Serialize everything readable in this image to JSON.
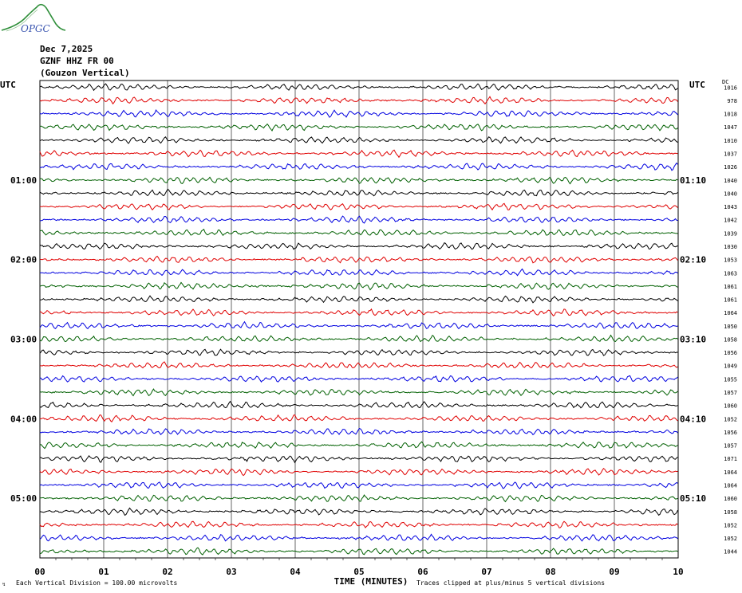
{
  "header": {
    "org_logo": "OPGC",
    "date": "Dec 7,2025",
    "station": "GZNF HHZ FR 00",
    "location": "(Gouzon Vertical)"
  },
  "axes": {
    "left_header": "UTC",
    "right_header": "UTC",
    "dc_header": "DC",
    "xlabel": "TIME (MINUTES)",
    "footer_left_mark": "↯",
    "footer_left": "Each Vertical Division =  100.00 microvolts",
    "footer_right": "Traces clipped at plus/minus 5 vertical divisions"
  },
  "colors": {
    "trace_cycle": [
      "#000000",
      "#e00000",
      "#0000e0",
      "#006000"
    ],
    "grid": "#000000"
  },
  "chart_data": {
    "type": "line",
    "subtype": "helicorder",
    "x_range": [
      0,
      10
    ],
    "x_ticks": [
      "00",
      "01",
      "02",
      "03",
      "04",
      "05",
      "06",
      "07",
      "08",
      "09",
      "10"
    ],
    "left_time_labels": [
      {
        "row": 7,
        "label": "01:00"
      },
      {
        "row": 13,
        "label": "02:00"
      },
      {
        "row": 19,
        "label": "03:00"
      },
      {
        "row": 25,
        "label": "04:00"
      },
      {
        "row": 31,
        "label": "05:00"
      }
    ],
    "right_time_labels": [
      {
        "row": 7,
        "label": "01:10"
      },
      {
        "row": 13,
        "label": "02:10"
      },
      {
        "row": 19,
        "label": "03:10"
      },
      {
        "row": 25,
        "label": "04:10"
      },
      {
        "row": 31,
        "label": "05:10"
      }
    ],
    "row_count": 36,
    "dc_offsets": [
      "1016",
      "978",
      "1018",
      "1047",
      "1010",
      "1037",
      "1026",
      "1040",
      "1040",
      "1043",
      "1042",
      "1039",
      "1030",
      "1053",
      "1063",
      "1061",
      "1061",
      "1064",
      "1050",
      "1058",
      "1056",
      "1049",
      "1055",
      "1057",
      "1060",
      "1052",
      "1056",
      "1057",
      "1071",
      "1064",
      "1064",
      "1060",
      "1058",
      "1052",
      "1052",
      "1044"
    ]
  }
}
